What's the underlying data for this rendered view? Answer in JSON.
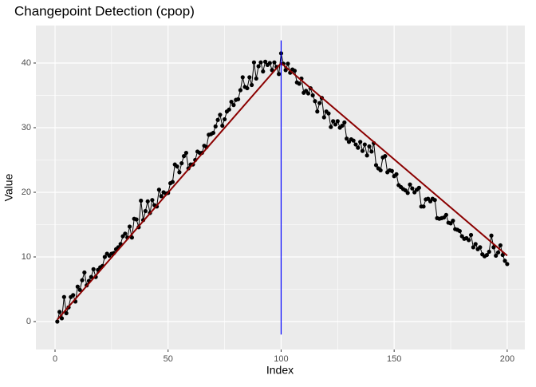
{
  "chart_data": {
    "type": "line-points",
    "title": "Changepoint Detection (cpop)",
    "x_label": "Index",
    "y_label": "Value",
    "x": [
      1,
      2,
      3,
      4,
      5,
      6,
      7,
      8,
      9,
      10,
      11,
      12,
      13,
      14,
      15,
      16,
      17,
      18,
      19,
      20,
      21,
      22,
      23,
      24,
      25,
      26,
      27,
      28,
      29,
      30,
      31,
      32,
      33,
      34,
      35,
      36,
      37,
      38,
      39,
      40,
      41,
      42,
      43,
      44,
      45,
      46,
      47,
      48,
      49,
      50,
      51,
      52,
      53,
      54,
      55,
      56,
      57,
      58,
      59,
      60,
      61,
      62,
      63,
      64,
      65,
      66,
      67,
      68,
      69,
      70,
      71,
      72,
      73,
      74,
      75,
      76,
      77,
      78,
      79,
      80,
      81,
      82,
      83,
      84,
      85,
      86,
      87,
      88,
      89,
      90,
      91,
      92,
      93,
      94,
      95,
      96,
      97,
      98,
      99,
      100,
      101,
      102,
      103,
      104,
      105,
      106,
      107,
      108,
      109,
      110,
      111,
      112,
      113,
      114,
      115,
      116,
      117,
      118,
      119,
      120,
      121,
      122,
      123,
      124,
      125,
      126,
      127,
      128,
      129,
      130,
      131,
      132,
      133,
      134,
      135,
      136,
      137,
      138,
      139,
      140,
      141,
      142,
      143,
      144,
      145,
      146,
      147,
      148,
      149,
      150,
      151,
      152,
      153,
      154,
      155,
      156,
      157,
      158,
      159,
      160,
      161,
      162,
      163,
      164,
      165,
      166,
      167,
      168,
      169,
      170,
      171,
      172,
      173,
      174,
      175,
      176,
      177,
      178,
      179,
      180,
      181,
      182,
      183,
      184,
      185,
      186,
      187,
      188,
      189,
      190,
      191,
      192,
      193,
      194,
      195,
      196,
      197,
      198,
      199,
      200
    ],
    "values": [
      0.0,
      1.5,
      0.5,
      3.8,
      1.3,
      2.2,
      3.8,
      4.1,
      3.1,
      5.4,
      4.9,
      6.4,
      7.6,
      5.6,
      6.3,
      6.9,
      8.1,
      6.9,
      8.0,
      8.4,
      8.6,
      10.0,
      10.5,
      10.2,
      10.5,
      10.6,
      11.2,
      11.5,
      12.0,
      13.2,
      13.6,
      13.0,
      14.7,
      13.0,
      15.9,
      15.8,
      14.6,
      18.7,
      15.7,
      17.1,
      18.6,
      16.8,
      18.8,
      18.0,
      17.8,
      20.4,
      19.4,
      20.0,
      19.8,
      19.9,
      21.4,
      21.6,
      24.3,
      24.0,
      23.1,
      24.5,
      25.6,
      26.1,
      23.7,
      24.3,
      24.3,
      25.0,
      26.3,
      26.1,
      26.1,
      27.2,
      27.0,
      28.9,
      29.0,
      29.2,
      30.2,
      31.2,
      32.0,
      30.3,
      31.3,
      32.5,
      32.8,
      34.0,
      33.5,
      34.3,
      34.4,
      35.8,
      37.8,
      36.3,
      36.1,
      37.8,
      36.6,
      40.1,
      37.6,
      39.5,
      40.1,
      38.7,
      40.2,
      39.7,
      40.0,
      38.9,
      40.1,
      39.4,
      38.3,
      41.5,
      39.9,
      38.9,
      39.9,
      38.5,
      39.0,
      38.8,
      37.0,
      36.8,
      37.6,
      35.4,
      35.7,
      35.3,
      36.1,
      35.0,
      34.1,
      32.5,
      33.8,
      34.6,
      31.6,
      32.5,
      32.2,
      30.1,
      31.0,
      30.5,
      31.0,
      30.0,
      30.3,
      30.8,
      28.3,
      27.8,
      28.2,
      28.0,
      27.4,
      26.9,
      27.8,
      26.4,
      27.4,
      25.7,
      27.1,
      26.3,
      27.6,
      24.2,
      23.7,
      23.4,
      25.4,
      25.6,
      23.1,
      23.4,
      23.3,
      22.5,
      22.8,
      21.1,
      20.8,
      20.5,
      20.3,
      19.9,
      21.2,
      20.6,
      20.0,
      20.4,
      20.7,
      17.8,
      17.8,
      18.9,
      19.0,
      18.6,
      19.0,
      18.8,
      16.0,
      15.9,
      16.0,
      16.1,
      16.5,
      15.3,
      15.2,
      15.6,
      14.3,
      14.2,
      14.0,
      13.2,
      12.8,
      12.9,
      12.6,
      13.4,
      11.5,
      12.0,
      11.2,
      11.5,
      10.4,
      10.1,
      10.3,
      10.8,
      13.3,
      11.5,
      10.2,
      10.7,
      11.8,
      10.3,
      9.4,
      8.9
    ],
    "color": "#000000",
    "fit": {
      "x": [
        1,
        100,
        200
      ],
      "values": [
        0.3,
        40.0,
        10.2
      ],
      "color": "#8b0000"
    },
    "changepoints": [
      {
        "x": 100,
        "ymin": -2.0,
        "ymax": 43.5,
        "color": "#0000ff"
      }
    ],
    "xlim": [
      -8.47,
      207.8
    ],
    "ylim": [
      -4.32,
      45.8
    ],
    "xticks": [
      0,
      50,
      100,
      150,
      200
    ],
    "yticks": [
      0,
      10,
      20,
      30,
      40
    ],
    "x_minor_ticks": [
      25,
      75,
      125,
      175
    ],
    "y_minor_ticks": [
      5,
      15,
      25,
      35
    ],
    "grid": true
  }
}
